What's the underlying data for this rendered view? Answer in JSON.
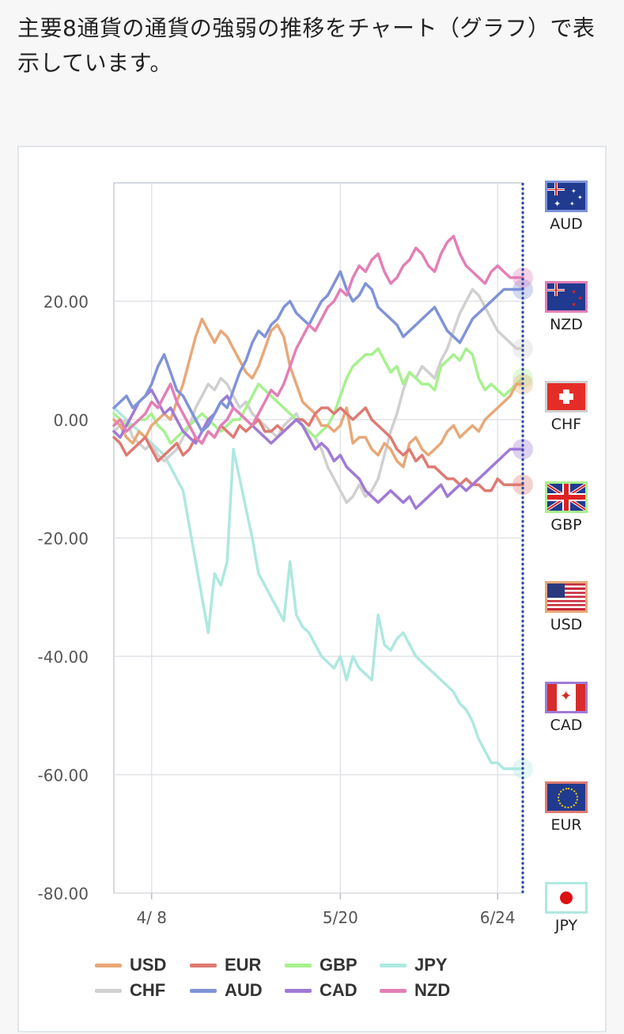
{
  "heading": "主要8通貨の通貨の強弱の推移をチャート（グラフ）で表示しています。",
  "chart_data": {
    "type": "line",
    "ylim": [
      -80,
      40
    ],
    "y_ticks": [
      20,
      0,
      -20,
      -40,
      -60,
      -80
    ],
    "y_tick_labels": [
      "20.00",
      "0.00",
      "-20.00",
      "-40.00",
      "-60.00",
      "-80.00"
    ],
    "x_tick_labels": [
      "4/ 8",
      "5/20",
      "6/24"
    ],
    "x_tick_index": [
      6,
      36,
      61
    ],
    "n_points": 66,
    "grid": true,
    "legend_position": "bottom",
    "series": [
      {
        "name": "USD",
        "color": "#e8a878",
        "values": [
          0,
          -1,
          -3,
          -4,
          -2,
          -3,
          -1,
          0,
          1,
          0,
          3,
          6,
          10,
          14,
          17,
          15,
          13,
          15,
          14,
          12,
          10,
          8,
          7,
          9,
          12,
          15,
          16,
          14,
          9,
          6,
          3,
          2,
          1,
          -1,
          -1,
          -2,
          -1,
          2,
          -4,
          -3,
          -3,
          -5,
          -6,
          -4,
          -5,
          -7,
          -8,
          -4,
          -3,
          -5,
          -6,
          -5,
          -4,
          -2,
          -1,
          -3,
          -2,
          -1,
          -2,
          0,
          1,
          2,
          3,
          4,
          6,
          6
        ]
      },
      {
        "name": "EUR",
        "color": "#de7a72",
        "values": [
          -3,
          -4,
          -6,
          -5,
          -4,
          -3,
          -5,
          -7,
          -6,
          -5,
          -4,
          -6,
          -5,
          -3,
          -4,
          -2,
          -3,
          -1,
          -2,
          -3,
          -1,
          -2,
          -1,
          0,
          -2,
          -2,
          -1,
          -2,
          -1,
          0,
          0,
          -1,
          1,
          2,
          2,
          1,
          2,
          1,
          0,
          1,
          2,
          0,
          -1,
          -2,
          -3,
          -5,
          -6,
          -5,
          -7,
          -6,
          -8,
          -8,
          -9,
          -10,
          -10,
          -11,
          -10,
          -11,
          -11,
          -12,
          -12,
          -10,
          -11,
          -11,
          -11,
          -11
        ]
      },
      {
        "name": "GBP",
        "color": "#a7f18e",
        "values": [
          1,
          0,
          -1,
          -1,
          0,
          0,
          1,
          -1,
          -2,
          -4,
          -3,
          -2,
          -1,
          0,
          1,
          0,
          -1,
          -2,
          -1,
          0,
          0,
          2,
          4,
          6,
          5,
          4,
          3,
          2,
          1,
          0,
          -1,
          -2,
          -3,
          -2,
          -1,
          1,
          4,
          7,
          9,
          10,
          11,
          11,
          12,
          10,
          8,
          9,
          6,
          8,
          7,
          6,
          6,
          5,
          9,
          10,
          11,
          10,
          12,
          11,
          7,
          5,
          6,
          5,
          4,
          5,
          6,
          7
        ]
      },
      {
        "name": "JPY",
        "color": "#aee8e0",
        "values": [
          2,
          1,
          0,
          -1,
          -2,
          -3,
          -4,
          -5,
          -6,
          -8,
          -10,
          -12,
          -18,
          -24,
          -30,
          -36,
          -26,
          -28,
          -24,
          -5,
          -10,
          -15,
          -20,
          -26,
          -28,
          -30,
          -32,
          -34,
          -24,
          -33,
          -35,
          -36,
          -38,
          -40,
          -41,
          -42,
          -40,
          -44,
          -40,
          -42,
          -43,
          -44,
          -33,
          -38,
          -39,
          -37,
          -36,
          -38,
          -40,
          -41,
          -42,
          -43,
          -44,
          -45,
          -46,
          -48,
          -49,
          -51,
          -54,
          -56,
          -58,
          -58,
          -59,
          -59,
          -59,
          -59
        ]
      },
      {
        "name": "CHF",
        "color": "#d0d0d0",
        "values": [
          -2,
          -1,
          0,
          -3,
          -4,
          -5,
          -4,
          -6,
          -7,
          -6,
          -5,
          -3,
          -1,
          2,
          4,
          6,
          5,
          7,
          6,
          4,
          2,
          3,
          1,
          0,
          -1,
          -2,
          -3,
          -1,
          0,
          1,
          -1,
          -2,
          -3,
          -5,
          -8,
          -10,
          -12,
          -14,
          -13,
          -11,
          -13,
          -12,
          -10,
          -6,
          -2,
          1,
          5,
          8,
          7,
          9,
          8,
          7,
          10,
          12,
          15,
          18,
          20,
          22,
          21,
          19,
          17,
          15,
          14,
          13,
          12,
          12
        ]
      },
      {
        "name": "AUD",
        "color": "#7f93d8",
        "values": [
          2,
          3,
          4,
          2,
          3,
          4,
          6,
          9,
          11,
          8,
          5,
          4,
          2,
          0,
          -2,
          -1,
          1,
          3,
          2,
          5,
          8,
          10,
          13,
          15,
          14,
          16,
          17,
          19,
          20,
          18,
          17,
          16,
          18,
          20,
          21,
          23,
          25,
          22,
          20,
          21,
          23,
          22,
          19,
          18,
          17,
          16,
          14,
          15,
          16,
          17,
          18,
          19,
          17,
          15,
          14,
          13,
          15,
          17,
          18,
          19,
          20,
          21,
          22,
          22,
          22,
          22
        ]
      },
      {
        "name": "CAD",
        "color": "#a07ad6",
        "values": [
          -2,
          -3,
          -1,
          1,
          3,
          4,
          5,
          3,
          1,
          2,
          0,
          -2,
          -3,
          -4,
          -2,
          0,
          1,
          3,
          4,
          2,
          1,
          0,
          -1,
          -2,
          -3,
          -4,
          -3,
          -2,
          -1,
          0,
          -1,
          -3,
          -5,
          -4,
          -5,
          -7,
          -6,
          -8,
          -9,
          -10,
          -12,
          -13,
          -14,
          -13,
          -12,
          -13,
          -14,
          -13,
          -15,
          -14,
          -13,
          -12,
          -11,
          -13,
          -12,
          -11,
          -12,
          -11,
          -10,
          -9,
          -8,
          -7,
          -6,
          -5,
          -5,
          -5
        ]
      },
      {
        "name": "NZD",
        "color": "#e37fb6",
        "values": [
          -1,
          0,
          -2,
          -1,
          0,
          1,
          3,
          2,
          4,
          6,
          3,
          1,
          -1,
          -3,
          -4,
          -2,
          -3,
          -1,
          0,
          2,
          1,
          0,
          -1,
          1,
          3,
          5,
          4,
          6,
          9,
          12,
          14,
          16,
          15,
          17,
          19,
          20,
          22,
          21,
          24,
          26,
          25,
          27,
          28,
          25,
          23,
          24,
          26,
          27,
          29,
          28,
          26,
          25,
          28,
          30,
          31,
          28,
          26,
          25,
          24,
          23,
          25,
          26,
          25,
          24,
          24,
          24
        ]
      }
    ]
  },
  "legend": [
    {
      "name": "USD",
      "color": "#e8a878"
    },
    {
      "name": "EUR",
      "color": "#de7a72"
    },
    {
      "name": "GBP",
      "color": "#a7f18e"
    },
    {
      "name": "JPY",
      "color": "#aee8e0"
    },
    {
      "name": "CHF",
      "color": "#d0d0d0"
    },
    {
      "name": "AUD",
      "color": "#7f93d8"
    },
    {
      "name": "CAD",
      "color": "#a07ad6"
    },
    {
      "name": "NZD",
      "color": "#e37fb6"
    }
  ],
  "flags": [
    {
      "code": "AUD",
      "border": "#7f93d8",
      "icon": "australia-flag-icon"
    },
    {
      "code": "NZD",
      "border": "#e37fb6",
      "icon": "new-zealand-flag-icon"
    },
    {
      "code": "CHF",
      "border": "#d0d0d0",
      "icon": "switzerland-flag-icon"
    },
    {
      "code": "GBP",
      "border": "#a7f18e",
      "icon": "uk-flag-icon"
    },
    {
      "code": "USD",
      "border": "#e8a878",
      "icon": "us-flag-icon"
    },
    {
      "code": "CAD",
      "border": "#a07ad6",
      "icon": "canada-flag-icon"
    },
    {
      "code": "EUR",
      "border": "#de7a72",
      "icon": "eu-flag-icon"
    },
    {
      "code": "JPY",
      "border": "#aee8e0",
      "icon": "japan-flag-icon"
    }
  ]
}
